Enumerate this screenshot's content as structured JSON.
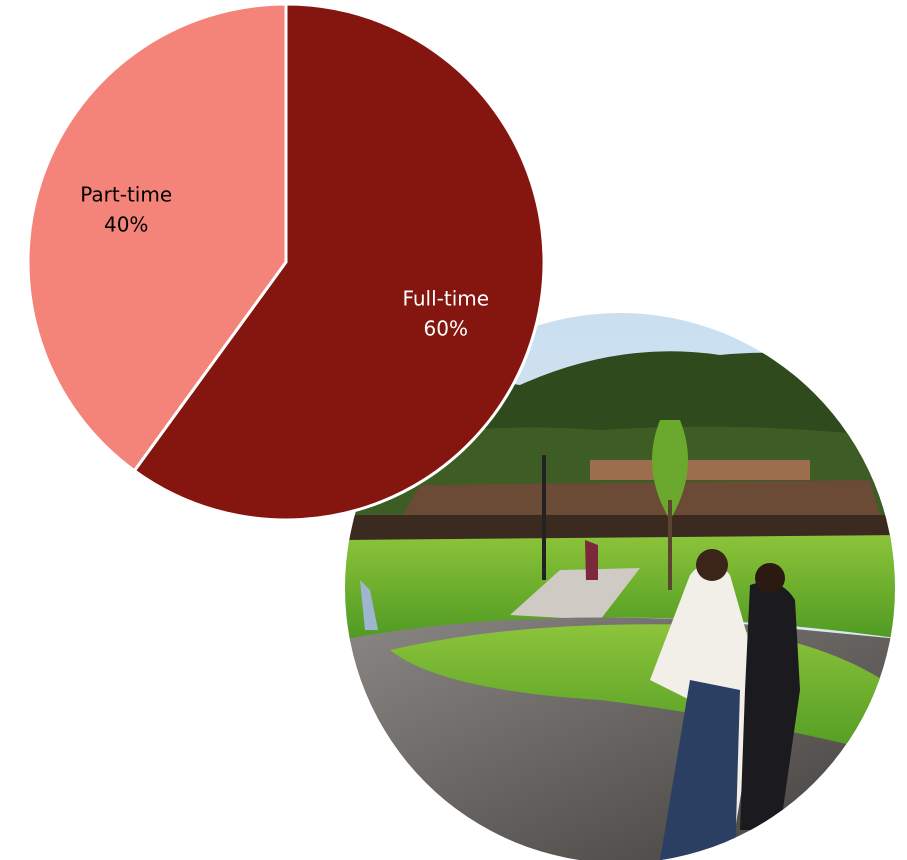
{
  "chart_data": {
    "type": "pie",
    "categories": [
      "Full-time",
      "Part-time"
    ],
    "values": [
      60,
      40
    ],
    "value_labels": [
      "60%",
      "40%"
    ],
    "colors": [
      "#84150F",
      "#F4837A"
    ],
    "label_colors": [
      "#ffffff",
      "#000000"
    ]
  }
}
